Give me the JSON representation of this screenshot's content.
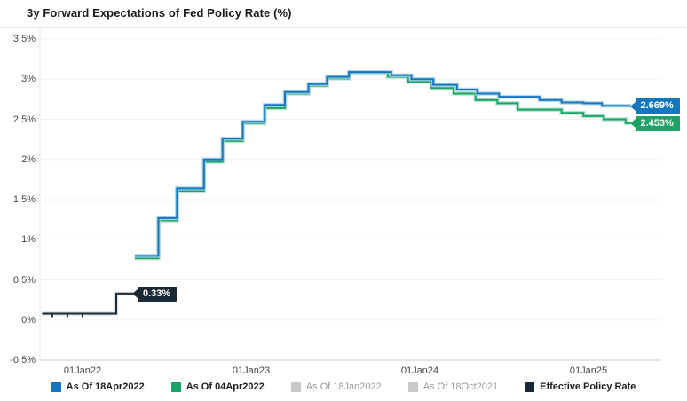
{
  "title": "3y Forward Expectations of Fed Policy Rate (%)",
  "colors": {
    "blue": "#1577be",
    "blue_halo": "#a9cfe9",
    "green": "#1da365",
    "green_halo": "#aadfc6",
    "dark": "#1b2a38",
    "disabled_swatch": "#c9c9c9",
    "grid": "#f3f3f3",
    "bottom_axis": "#c5cbd3",
    "left_axis": "#e7e7e7"
  },
  "chart_data": {
    "type": "line",
    "subtype": "step-after",
    "title": "3y Forward Expectations of Fed Policy Rate (%)",
    "x_axis": {
      "unit": "date",
      "range_years_from_2022": [
        -0.26,
        3.43
      ],
      "ticks": [
        {
          "t": 0,
          "label": "01Jan22"
        },
        {
          "t": 1,
          "label": "01Jan23"
        },
        {
          "t": 2,
          "label": "01Jan24"
        },
        {
          "t": 3,
          "label": "01Jan25"
        }
      ]
    },
    "y_axis": {
      "unit": "%",
      "range": [
        -0.5,
        3.5
      ],
      "ticks": [
        {
          "v": 3.5,
          "label": "3.5%"
        },
        {
          "v": 3.0,
          "label": "3%"
        },
        {
          "v": 2.5,
          "label": "2.5%"
        },
        {
          "v": 2.0,
          "label": "2%"
        },
        {
          "v": 1.5,
          "label": "1.5%"
        },
        {
          "v": 1.0,
          "label": "1%"
        },
        {
          "v": 0.5,
          "label": "0.5%"
        },
        {
          "v": 0.0,
          "label": "0%"
        },
        {
          "v": -0.5,
          "label": "-0.5%"
        }
      ]
    },
    "grid": "horizontal",
    "legend_position": "bottom",
    "series": [
      {
        "name": "As Of 04Apr2022",
        "color": "#1da365",
        "halo": "#aadfc6",
        "end_label": "2.453%",
        "t_end": 3.25,
        "step_points": [
          [
            0.31,
            0.77
          ],
          [
            0.45,
            1.24
          ],
          [
            0.56,
            1.61
          ],
          [
            0.72,
            1.97
          ],
          [
            0.83,
            2.23
          ],
          [
            0.95,
            2.45
          ],
          [
            1.08,
            2.64
          ],
          [
            1.2,
            2.82
          ],
          [
            1.34,
            2.92
          ],
          [
            1.45,
            3.01
          ],
          [
            1.58,
            3.08
          ],
          [
            1.81,
            3.03
          ],
          [
            1.93,
            2.97
          ],
          [
            2.07,
            2.89
          ],
          [
            2.2,
            2.82
          ],
          [
            2.33,
            2.74
          ],
          [
            2.46,
            2.7
          ],
          [
            2.58,
            2.62
          ],
          [
            2.84,
            2.58
          ],
          [
            2.97,
            2.54
          ],
          [
            3.09,
            2.5
          ],
          [
            3.22,
            2.453
          ]
        ]
      },
      {
        "name": "As Of 18Apr2022",
        "color": "#1577be",
        "halo": "#a9cfe9",
        "end_label": "2.669%",
        "t_end": 3.25,
        "step_points": [
          [
            0.31,
            0.8
          ],
          [
            0.45,
            1.27
          ],
          [
            0.56,
            1.64
          ],
          [
            0.72,
            2.0
          ],
          [
            0.83,
            2.26
          ],
          [
            0.95,
            2.47
          ],
          [
            1.08,
            2.68
          ],
          [
            1.2,
            2.84
          ],
          [
            1.34,
            2.94
          ],
          [
            1.45,
            3.03
          ],
          [
            1.58,
            3.09
          ],
          [
            1.83,
            3.05
          ],
          [
            1.95,
            3.0
          ],
          [
            2.08,
            2.93
          ],
          [
            2.22,
            2.87
          ],
          [
            2.34,
            2.82
          ],
          [
            2.47,
            2.78
          ],
          [
            2.71,
            2.74
          ],
          [
            2.84,
            2.71
          ],
          [
            2.97,
            2.7
          ],
          [
            3.08,
            2.669
          ]
        ]
      },
      {
        "name": "Effective Policy Rate",
        "color": "#1b2a38",
        "halo": "#d6dadf",
        "end_label": "0.33%",
        "t_end": 0.3,
        "step_points": [
          [
            -0.24,
            0.08
          ],
          [
            0.2,
            0.33
          ]
        ],
        "markers_t": [
          -0.18,
          -0.09,
          0.0
        ]
      }
    ],
    "legend": [
      {
        "label": "As Of 18Apr2022",
        "color": "#1577be",
        "active": true
      },
      {
        "label": "As Of 04Apr2022",
        "color": "#1da365",
        "active": true
      },
      {
        "label": "As Of 18Jan2022",
        "color": "#c9c9c9",
        "active": false
      },
      {
        "label": "As Of 18Oct2021",
        "color": "#c9c9c9",
        "active": false
      },
      {
        "label": "Effective Policy Rate",
        "color": "#1b2a38",
        "active": true
      }
    ]
  }
}
